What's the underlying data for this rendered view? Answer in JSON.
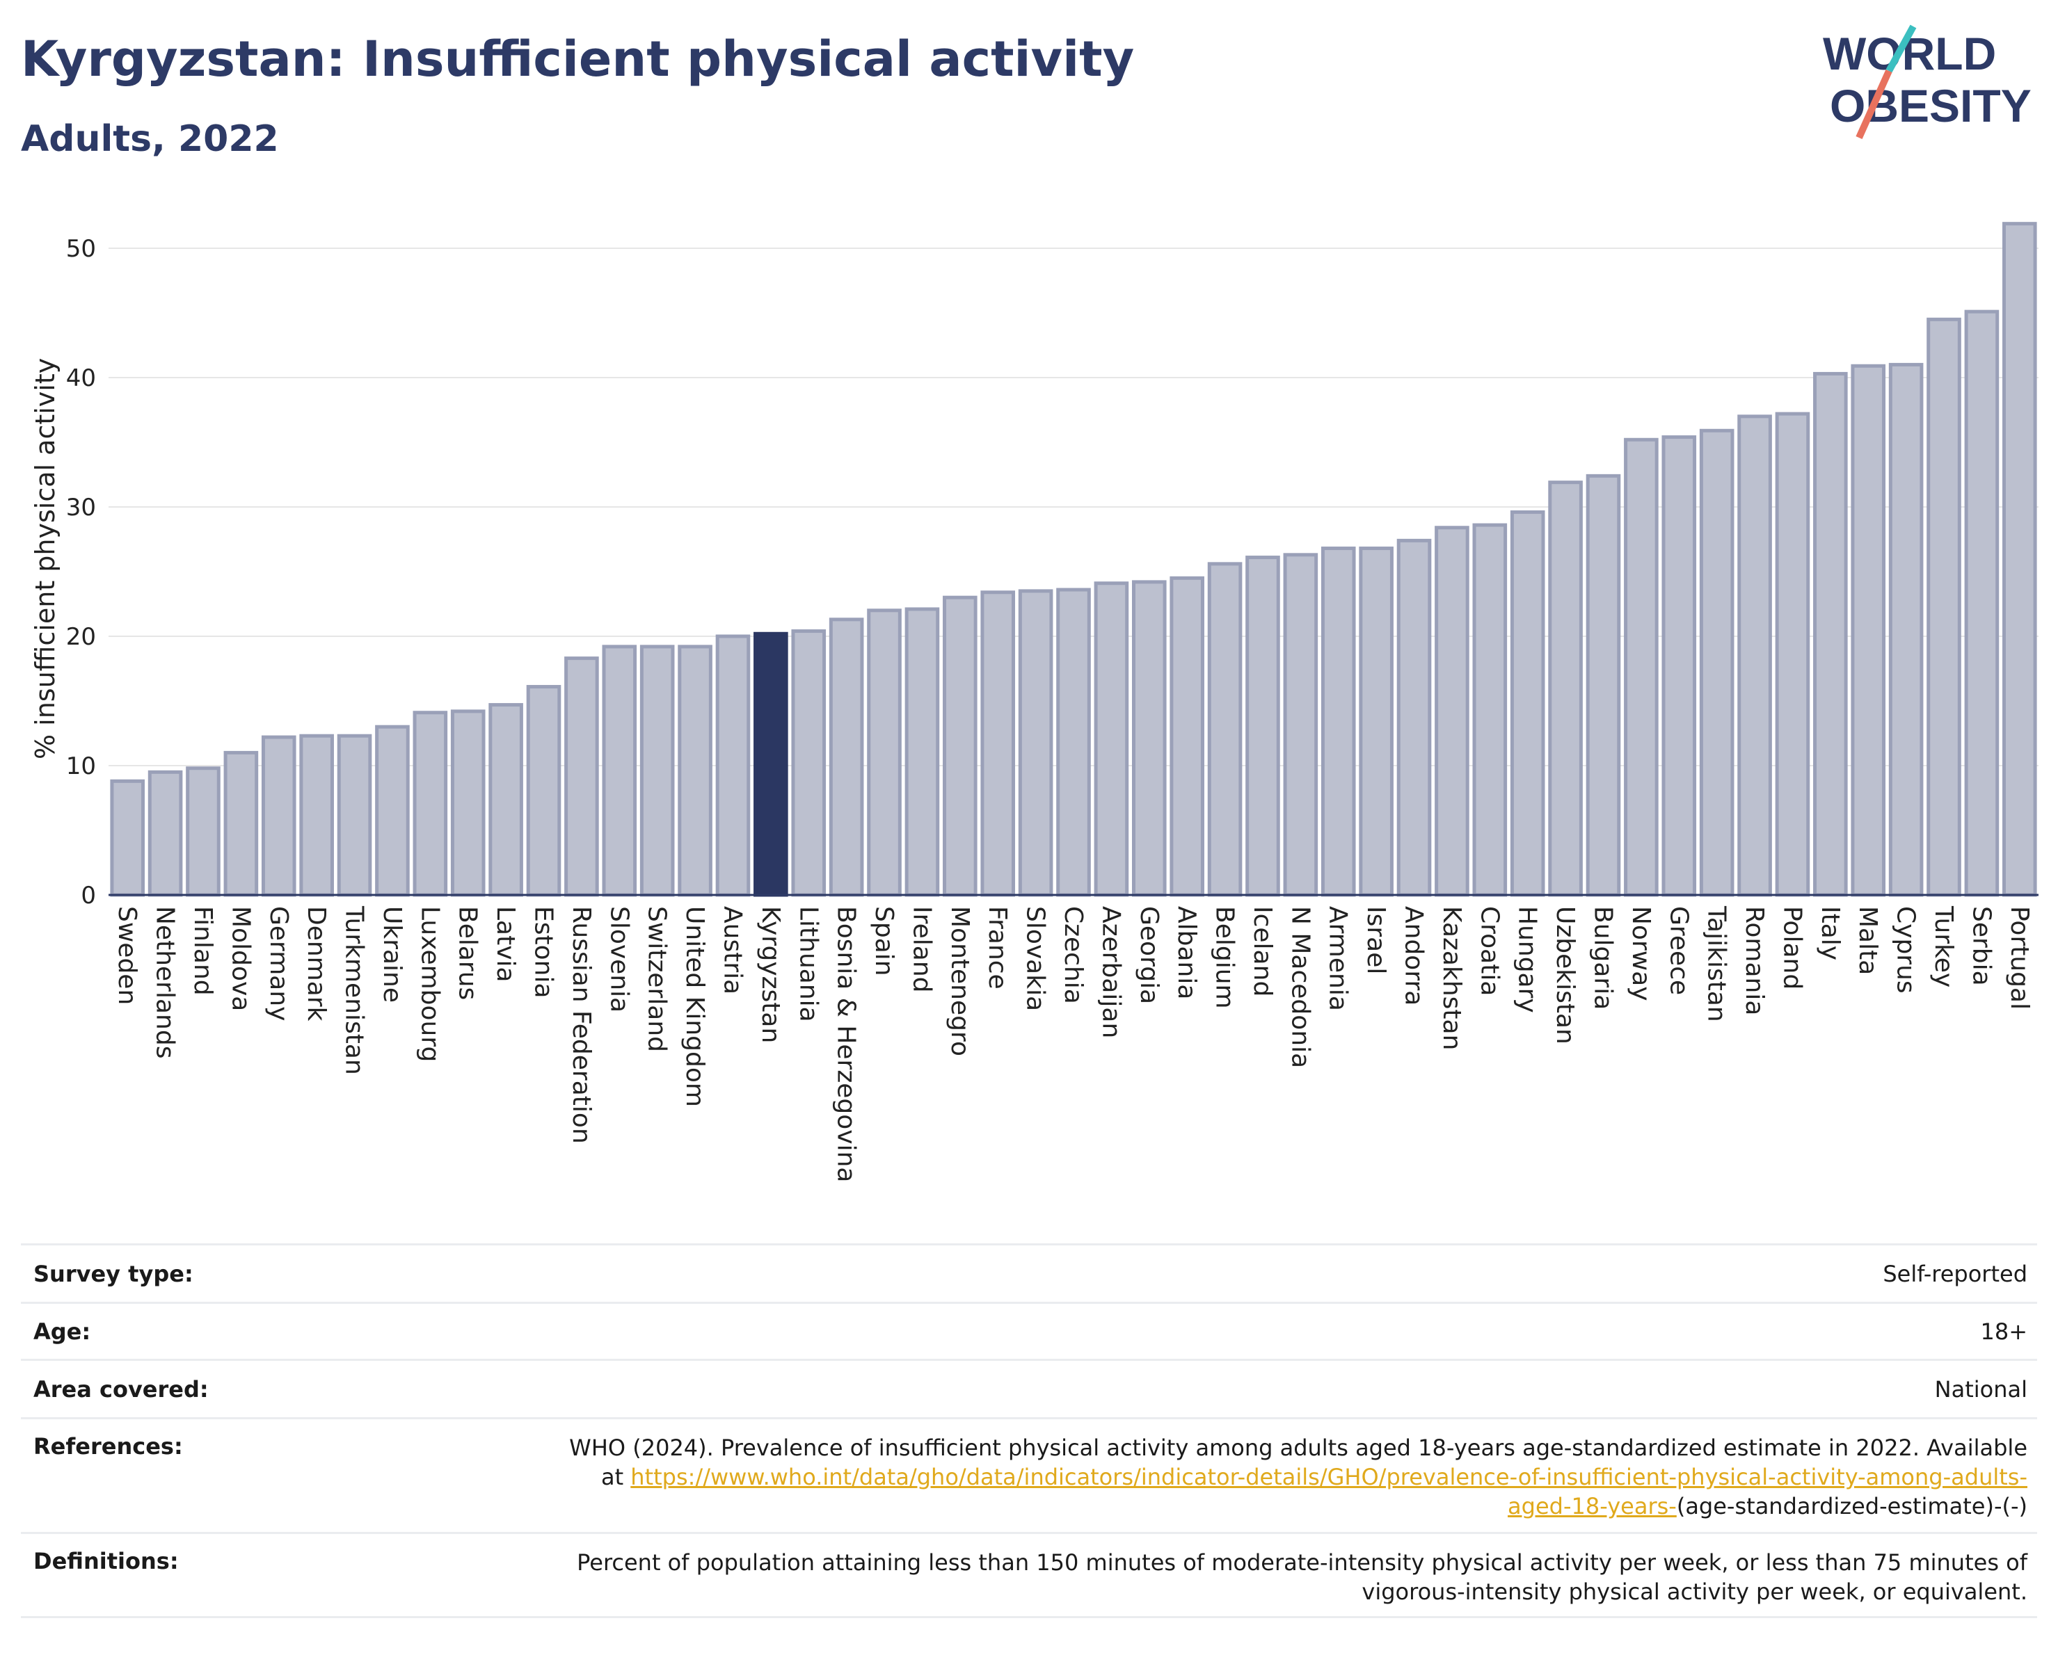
{
  "header": {
    "title": "Kyrgyzstan: Insufficient physical activity",
    "subtitle": "Adults, 2022",
    "logo_text_line1": "WORLD",
    "logo_text_line2": "OBESITY"
  },
  "colors": {
    "title": "#2d3a66",
    "bar": "#bcc0cf",
    "bar_stroke": "#9aa0b8",
    "highlight": "#2b3762",
    "grid": "#e6e6e6",
    "link": "#e0a91c",
    "logo_teal": "#3bbfc0",
    "logo_coral": "#e8725e"
  },
  "chart_data": {
    "type": "bar",
    "ylabel": "% insufficient physical activity",
    "ylim": [
      0,
      52
    ],
    "yticks": [
      0,
      10,
      20,
      30,
      40,
      50
    ],
    "grid": true,
    "highlight": "Kyrgyzstan",
    "categories": [
      "Sweden",
      "Netherlands",
      "Finland",
      "Moldova",
      "Germany",
      "Denmark",
      "Turkmenistan",
      "Ukraine",
      "Luxembourg",
      "Belarus",
      "Latvia",
      "Estonia",
      "Russian Federation",
      "Slovenia",
      "Switzerland",
      "United Kingdom",
      "Austria",
      "Kyrgyzstan",
      "Lithuania",
      "Bosnia & Herzegovina",
      "Spain",
      "Ireland",
      "Montenegro",
      "France",
      "Slovakia",
      "Czechia",
      "Azerbaijan",
      "Georgia",
      "Albania",
      "Belgium",
      "Iceland",
      "N Macedonia",
      "Armenia",
      "Israel",
      "Andorra",
      "Kazakhstan",
      "Croatia",
      "Hungary",
      "Uzbekistan",
      "Bulgaria",
      "Norway",
      "Greece",
      "Tajikistan",
      "Romania",
      "Poland",
      "Italy",
      "Malta",
      "Cyprus",
      "Turkey",
      "Serbia",
      "Portugal"
    ],
    "values": [
      8.8,
      9.5,
      9.8,
      11.0,
      12.2,
      12.3,
      12.3,
      13.0,
      14.1,
      14.2,
      14.7,
      16.1,
      18.3,
      19.2,
      19.2,
      19.2,
      20.0,
      20.2,
      20.4,
      21.3,
      22.0,
      22.1,
      23.0,
      23.4,
      23.5,
      23.6,
      24.1,
      24.2,
      24.5,
      25.6,
      26.1,
      26.3,
      26.8,
      26.8,
      27.4,
      28.4,
      28.6,
      29.6,
      31.9,
      32.4,
      35.2,
      35.4,
      35.9,
      37.0,
      37.2,
      40.3,
      40.9,
      41.0,
      44.5,
      45.1,
      51.9
    ]
  },
  "info": [
    {
      "key": "Survey type:",
      "value": "Self-reported"
    },
    {
      "key": "Age:",
      "value": "18+"
    },
    {
      "key": "Area covered:",
      "value": "National"
    },
    {
      "key": "References:",
      "value_pre": "WHO (2024). Prevalence of insufficient physical activity among adults aged 18-years age-standardized estimate in 2022. Available at ",
      "link": "https://www.who.int/data/gho/data/indicators/indicator-details/GHO/prevalence-of-insufficient-physical-activity-among-adults-aged-18-years-",
      "value_post": "(age-standardized-estimate)-(-)"
    },
    {
      "key": "Definitions:",
      "value": "Percent of population attaining less than 150 minutes of moderate-intensity physical activity per week, or less than 75 minutes of vigorous-intensity physical activity per week, or equivalent."
    }
  ]
}
